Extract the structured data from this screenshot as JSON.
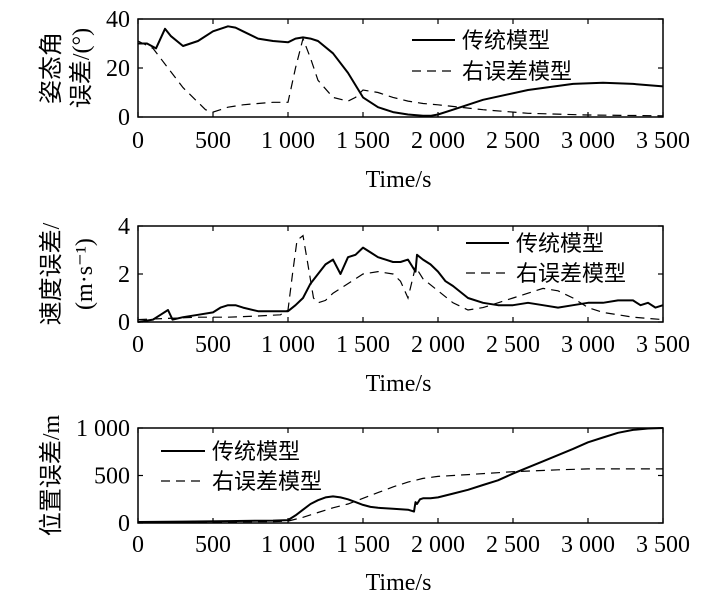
{
  "chart_data": [
    {
      "type": "line",
      "ylabel_lines": [
        "姿态角",
        "误差/(°)"
      ],
      "xlabel": "Time/s",
      "xlim": [
        0,
        3500
      ],
      "ylim": [
        0,
        40
      ],
      "x_ticks": [
        0,
        500,
        1000,
        1500,
        2000,
        2500,
        3000,
        3500
      ],
      "x_tick_labels": [
        "0",
        "500",
        "1 000",
        "1 500",
        "2 000",
        "2 500",
        "3 000",
        "3 500"
      ],
      "y_ticks": [
        0,
        20,
        40
      ],
      "y_tick_labels": [
        "0",
        "20",
        "40"
      ],
      "legend_position": "top-right",
      "series": [
        {
          "name": "传统模型",
          "style": "solid",
          "x": [
            0,
            60,
            120,
            180,
            220,
            300,
            400,
            500,
            600,
            650,
            700,
            800,
            900,
            1000,
            1050,
            1100,
            1150,
            1200,
            1300,
            1400,
            1500,
            1600,
            1700,
            1800,
            1900,
            1950,
            2000,
            2100,
            2300,
            2600,
            2900,
            3100,
            3300,
            3500
          ],
          "y": [
            30,
            30,
            28,
            36,
            33,
            29,
            31,
            35,
            37,
            36.5,
            35,
            32,
            31,
            30.5,
            32,
            32.5,
            32,
            31,
            26,
            18,
            8,
            4,
            2,
            1,
            0.5,
            0.5,
            1,
            3,
            7,
            11,
            13.5,
            14,
            13.5,
            12.5
          ]
        },
        {
          "name": "右误差模型",
          "style": "dashed",
          "x": [
            0,
            100,
            200,
            300,
            400,
            450,
            500,
            550,
            600,
            700,
            800,
            900,
            1000,
            1050,
            1100,
            1150,
            1200,
            1300,
            1400,
            1450,
            1500,
            1600,
            1700,
            1800,
            1900,
            2000,
            2300,
            2600,
            3000,
            3500
          ],
          "y": [
            31,
            28,
            20,
            12,
            6,
            3,
            2,
            3,
            4,
            5,
            5.5,
            6,
            6,
            20,
            32,
            24,
            15,
            8,
            6.5,
            8,
            11,
            10,
            8,
            6.5,
            5.5,
            5,
            3,
            1.5,
            0.8,
            0.5
          ]
        }
      ]
    },
    {
      "type": "line",
      "ylabel_lines": [
        "速度误差/",
        "(m·s⁻¹)"
      ],
      "xlabel": "Time/s",
      "xlim": [
        0,
        3500
      ],
      "ylim": [
        0,
        4
      ],
      "x_ticks": [
        0,
        500,
        1000,
        1500,
        2000,
        2500,
        3000,
        3500
      ],
      "x_tick_labels": [
        "0",
        "500",
        "1 000",
        "1 500",
        "2 000",
        "2 500",
        "3 000",
        "3 500"
      ],
      "y_ticks": [
        0,
        2,
        4
      ],
      "y_tick_labels": [
        "0",
        "2",
        "4"
      ],
      "legend_position": "top-right",
      "series": [
        {
          "name": "传统模型",
          "style": "solid",
          "x": [
            0,
            100,
            150,
            200,
            230,
            300,
            400,
            500,
            550,
            600,
            650,
            700,
            800,
            900,
            1000,
            1050,
            1100,
            1150,
            1200,
            1250,
            1300,
            1350,
            1400,
            1450,
            1500,
            1550,
            1600,
            1650,
            1700,
            1750,
            1800,
            1850,
            1860,
            1900,
            1950,
            2000,
            2050,
            2100,
            2200,
            2300,
            2400,
            2500,
            2600,
            2700,
            2800,
            2900,
            3000,
            3100,
            3200,
            3300,
            3350,
            3400,
            3450,
            3500
          ],
          "y": [
            0,
            0.1,
            0.3,
            0.5,
            0.1,
            0.2,
            0.3,
            0.4,
            0.6,
            0.7,
            0.7,
            0.6,
            0.45,
            0.45,
            0.45,
            0.7,
            1.0,
            1.6,
            2.0,
            2.4,
            2.6,
            2.0,
            2.7,
            2.8,
            3.1,
            2.9,
            2.7,
            2.6,
            2.5,
            2.5,
            2.6,
            2.1,
            2.8,
            2.6,
            2.4,
            2.1,
            1.7,
            1.5,
            1.0,
            0.8,
            0.7,
            0.7,
            0.8,
            0.7,
            0.6,
            0.7,
            0.8,
            0.8,
            0.9,
            0.9,
            0.7,
            0.8,
            0.6,
            0.7
          ]
        },
        {
          "name": "右误差模型",
          "style": "dashed",
          "x": [
            0,
            200,
            400,
            600,
            800,
            950,
            1000,
            1030,
            1060,
            1100,
            1130,
            1170,
            1200,
            1250,
            1300,
            1400,
            1500,
            1600,
            1700,
            1750,
            1800,
            1850,
            1900,
            2000,
            2100,
            2200,
            2300,
            2400,
            2500,
            2600,
            2700,
            2800,
            2900,
            3000,
            3100,
            3200,
            3300,
            3400,
            3500
          ],
          "y": [
            0.1,
            0.15,
            0.2,
            0.2,
            0.25,
            0.3,
            0.5,
            2.0,
            3.4,
            3.6,
            2.5,
            1.0,
            0.8,
            0.9,
            1.2,
            1.6,
            2.0,
            2.1,
            2.0,
            1.7,
            1.0,
            2.3,
            1.8,
            1.3,
            0.8,
            0.5,
            0.6,
            0.8,
            1.0,
            1.2,
            1.4,
            1.3,
            1.0,
            0.6,
            0.4,
            0.3,
            0.2,
            0.15,
            0.1
          ]
        }
      ]
    },
    {
      "type": "line",
      "ylabel_lines": [
        "位置误差/m"
      ],
      "xlabel": "Time/s",
      "xlim": [
        0,
        3500
      ],
      "ylim": [
        0,
        1000
      ],
      "x_ticks": [
        0,
        500,
        1000,
        1500,
        2000,
        2500,
        3000,
        3500
      ],
      "x_tick_labels": [
        "0",
        "500",
        "1 000",
        "1 500",
        "2 000",
        "2 500",
        "3 000",
        "3 500"
      ],
      "y_ticks": [
        0,
        500,
        1000
      ],
      "y_tick_labels": [
        "0",
        "500",
        "1 000"
      ],
      "legend_position": "top-left",
      "series": [
        {
          "name": "传统模型",
          "style": "solid",
          "x": [
            0,
            300,
            600,
            900,
            1000,
            1050,
            1100,
            1150,
            1200,
            1250,
            1300,
            1350,
            1400,
            1450,
            1500,
            1550,
            1600,
            1700,
            1800,
            1840,
            1850,
            1860,
            1880,
            1900,
            1950,
            2000,
            2100,
            2200,
            2300,
            2400,
            2500,
            2700,
            2900,
            3000,
            3100,
            3200,
            3300,
            3400,
            3500
          ],
          "y": [
            10,
            15,
            20,
            25,
            30,
            80,
            140,
            200,
            240,
            270,
            280,
            270,
            250,
            220,
            190,
            170,
            160,
            150,
            140,
            120,
            220,
            200,
            250,
            260,
            260,
            270,
            310,
            350,
            400,
            450,
            520,
            650,
            780,
            850,
            900,
            950,
            980,
            995,
            1000
          ]
        },
        {
          "name": "右误差模型",
          "style": "dashed",
          "x": [
            0,
            300,
            600,
            900,
            1000,
            1100,
            1200,
            1300,
            1400,
            1500,
            1600,
            1700,
            1800,
            1900,
            2000,
            2200,
            2500,
            2800,
            3000,
            3200,
            3500
          ],
          "y": [
            5,
            8,
            12,
            15,
            20,
            60,
            110,
            160,
            200,
            260,
            320,
            380,
            430,
            470,
            490,
            510,
            540,
            560,
            570,
            570,
            570
          ]
        }
      ]
    }
  ]
}
